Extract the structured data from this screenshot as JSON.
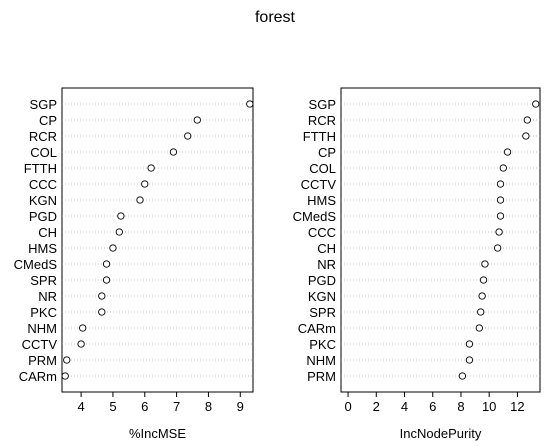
{
  "chart_data": {
    "title": "forest",
    "panels": [
      {
        "type": "scatter",
        "xlabel": "%IncMSE",
        "xlim": [
          3.4,
          9.4
        ],
        "xticks": [
          4,
          5,
          6,
          7,
          8,
          9
        ],
        "categories": [
          "SGP",
          "CP",
          "RCR",
          "COL",
          "FTTH",
          "CCC",
          "KGN",
          "PGD",
          "CH",
          "HMS",
          "CMedS",
          "SPR",
          "NR",
          "PKC",
          "NHM",
          "CCTV",
          "PRM",
          "CARm"
        ],
        "values": [
          9.3,
          7.65,
          7.35,
          6.9,
          6.2,
          6.0,
          5.85,
          5.25,
          5.2,
          5.0,
          4.8,
          4.8,
          4.65,
          4.65,
          4.05,
          4.0,
          3.55,
          3.5
        ]
      },
      {
        "type": "scatter",
        "xlabel": "IncNodePurity",
        "xlim": [
          -0.5,
          13.6
        ],
        "xticks": [
          0,
          2,
          4,
          6,
          8,
          10,
          12
        ],
        "categories": [
          "SGP",
          "RCR",
          "FTTH",
          "CP",
          "COL",
          "CCTV",
          "HMS",
          "CMedS",
          "CCC",
          "CH",
          "NR",
          "PGD",
          "KGN",
          "SPR",
          "CARm",
          "PKC",
          "NHM",
          "PRM"
        ],
        "values": [
          13.3,
          12.7,
          12.6,
          11.3,
          11.0,
          10.8,
          10.8,
          10.8,
          10.7,
          10.6,
          9.7,
          9.6,
          9.5,
          9.4,
          9.3,
          8.6,
          8.6,
          8.1
        ]
      }
    ]
  }
}
